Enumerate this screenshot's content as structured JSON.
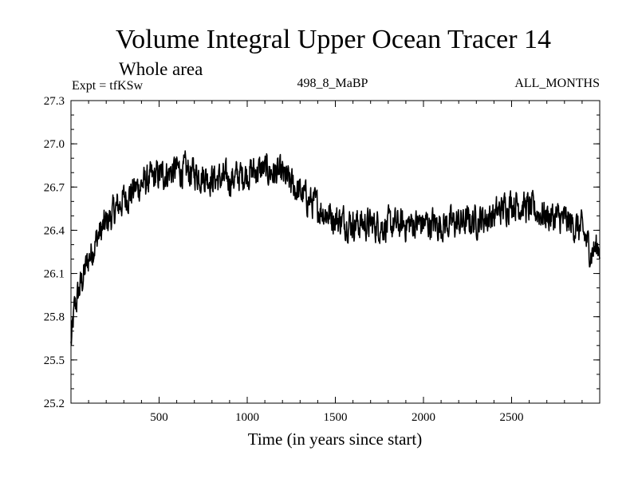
{
  "chart_data": {
    "type": "line",
    "title": "Volume Integral Upper Ocean Tracer 14",
    "subtitle": "Whole area",
    "expt_label": "Expt = tfKSw",
    "run_label": "498_8_MaBP",
    "months_label": "ALL_MONTHS",
    "xlabel": "Time (in years since start)",
    "ylabel": "",
    "xlim": [
      0,
      3000
    ],
    "ylim": [
      25.2,
      27.3
    ],
    "x_ticks": [
      500,
      1000,
      1500,
      2000,
      2500
    ],
    "x_tick_labels": [
      "500",
      "1000",
      "1500",
      "2000",
      "2500"
    ],
    "y_ticks": [
      25.2,
      25.5,
      25.8,
      26.1,
      26.4,
      26.7,
      27.0,
      27.3
    ],
    "y_tick_labels": [
      "25.2",
      "25.5",
      "25.8",
      "26.1",
      "26.4",
      "26.7",
      "27.0",
      "27.3"
    ],
    "grid": false,
    "line_color": "#000000",
    "series": [
      {
        "name": "Tracer 14",
        "x_start": 0,
        "x_end": 3000,
        "noise_amplitude": 0.09,
        "trend_x": [
          0,
          20,
          50,
          100,
          150,
          200,
          300,
          400,
          500,
          600,
          700,
          800,
          900,
          1000,
          1100,
          1200,
          1300,
          1400,
          1500,
          1600,
          1700,
          1800,
          1900,
          2000,
          2100,
          2200,
          2300,
          2400,
          2500,
          2600,
          2700,
          2800,
          2900,
          2950,
          3000
        ],
        "trend_y": [
          25.6,
          25.85,
          26.0,
          26.2,
          26.35,
          26.45,
          26.62,
          26.72,
          26.78,
          26.82,
          26.8,
          26.76,
          26.75,
          26.8,
          26.82,
          26.78,
          26.66,
          26.56,
          26.48,
          26.45,
          26.44,
          26.43,
          26.44,
          26.45,
          26.44,
          26.45,
          26.47,
          26.5,
          26.6,
          26.55,
          26.5,
          26.47,
          26.4,
          26.25,
          26.3
        ]
      }
    ]
  }
}
